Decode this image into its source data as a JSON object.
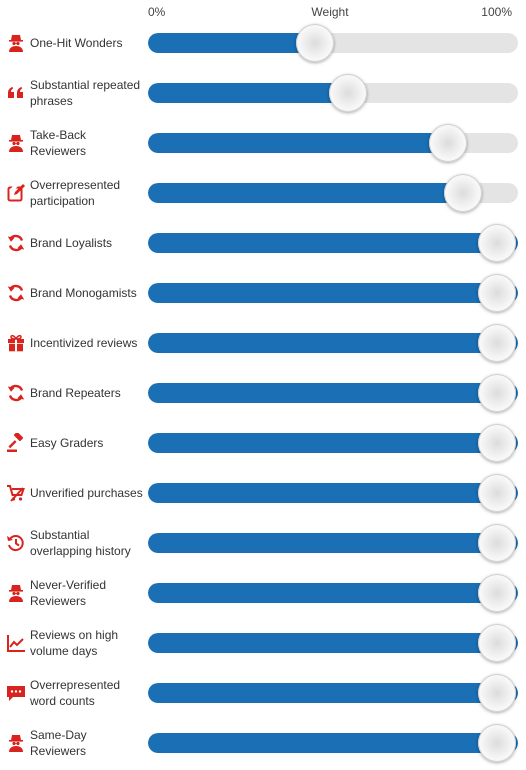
{
  "header": {
    "min_label": "0%",
    "title": "Weight",
    "max_label": "100%"
  },
  "colors": {
    "accent": "#1a6fb5",
    "icon": "#d9231f",
    "track": "#e4e4e4"
  },
  "rows": [
    {
      "label": "One-Hit Wonders",
      "icon": "reviewer-icon",
      "weight": 0.45
    },
    {
      "label": "Substantial repeated phrases",
      "icon": "quote-icon",
      "weight": 0.54
    },
    {
      "label": "Take-Back Reviewers",
      "icon": "reviewer-icon",
      "weight": 0.81
    },
    {
      "label": "Overrepresented participation",
      "icon": "edit-icon",
      "weight": 0.85
    },
    {
      "label": "Brand Loyalists",
      "icon": "refresh-icon",
      "weight": 1.0
    },
    {
      "label": "Brand Monogamists",
      "icon": "refresh-icon",
      "weight": 1.0
    },
    {
      "label": "Incentivized reviews",
      "icon": "gift-icon",
      "weight": 1.0
    },
    {
      "label": "Brand Repeaters",
      "icon": "refresh-icon",
      "weight": 1.0
    },
    {
      "label": "Easy Graders",
      "icon": "gavel-icon",
      "weight": 1.0
    },
    {
      "label": "Unverified purchases",
      "icon": "cart-icon",
      "weight": 1.0
    },
    {
      "label": "Substantial overlapping history",
      "icon": "history-icon",
      "weight": 1.0
    },
    {
      "label": "Never-Verified Reviewers",
      "icon": "reviewer-icon",
      "weight": 1.0
    },
    {
      "label": "Reviews on high volume days",
      "icon": "line-chart-icon",
      "weight": 1.0
    },
    {
      "label": "Overrepresented word counts",
      "icon": "comment-icon",
      "weight": 1.0
    },
    {
      "label": "Same-Day Reviewers",
      "icon": "reviewer-icon",
      "weight": 1.0
    }
  ]
}
